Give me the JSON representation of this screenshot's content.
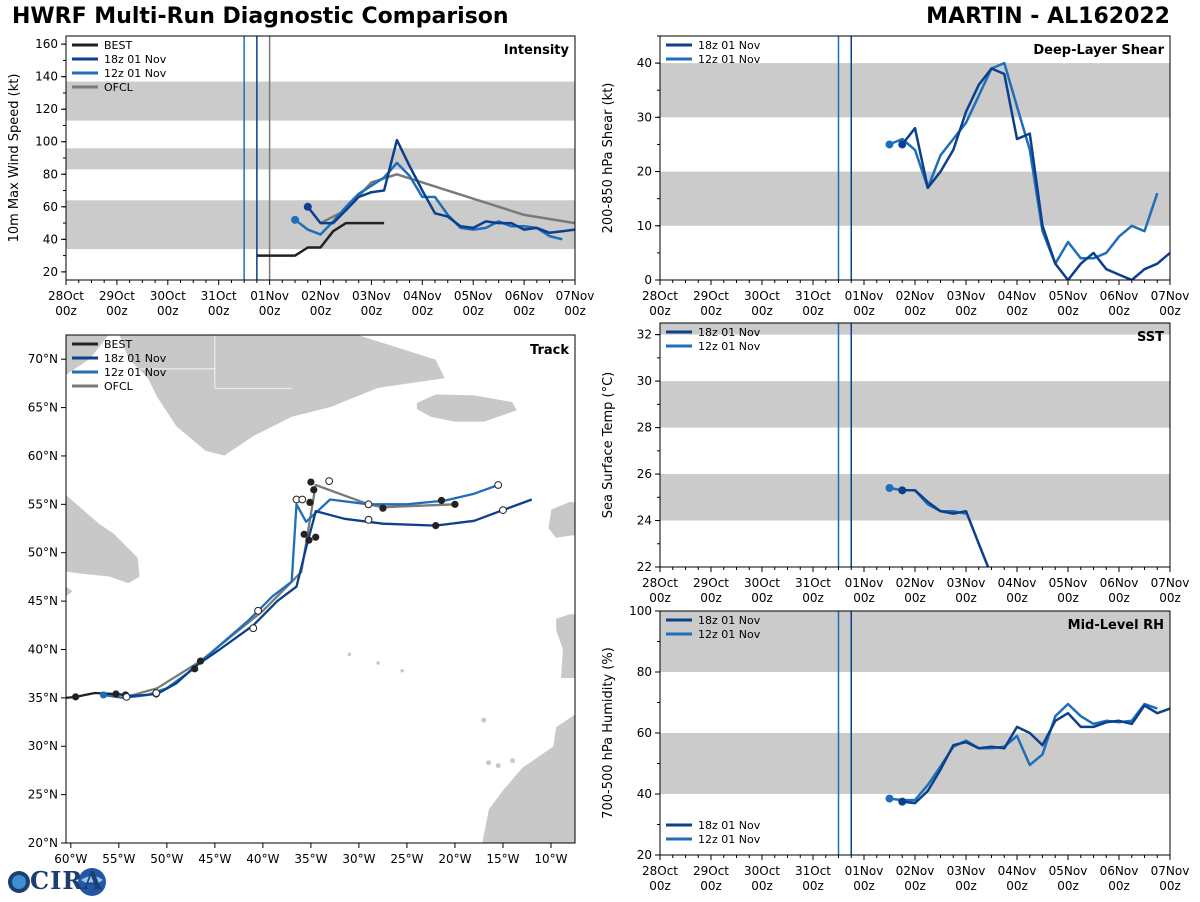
{
  "header": {
    "title_left": "HWRF Multi-Run Diagnostic Comparison",
    "title_right": "MARTIN - AL162022"
  },
  "logo": {
    "text": "CIRA"
  },
  "colors": {
    "best": "#222222",
    "run18": "#0c3f8c",
    "run12": "#1f6fb8",
    "ofcl": "#7a7a7a",
    "band": "#cbcbcb",
    "land": "#c8c8c8"
  },
  "time_axis": {
    "tick_labels": [
      "28Oct\n00z",
      "29Oct\n00z",
      "30Oct\n00z",
      "31Oct\n00z",
      "01Nov\n00z",
      "02Nov\n00z",
      "03Nov\n00z",
      "04Nov\n00z",
      "05Nov\n00z",
      "06Nov\n00z",
      "07Nov\n00z"
    ],
    "init_times": {
      "run12": 3.5,
      "run18": 3.75,
      "ofcl": 4.0
    }
  },
  "chart_data": [
    {
      "id": "intensity",
      "type": "line",
      "title": "Intensity",
      "ylabel": "10m Max Wind Speed (kt)",
      "xlim": [
        0,
        10
      ],
      "ylim": [
        15,
        165
      ],
      "yticks": [
        20,
        40,
        60,
        80,
        100,
        120,
        140,
        160
      ],
      "bands": [
        [
          34,
          64
        ],
        [
          83,
          96
        ],
        [
          113,
          137
        ]
      ],
      "vlines": [
        "run12",
        "run18",
        "ofcl"
      ],
      "legend": [
        "BEST",
        "18z 01 Nov",
        "12z 01 Nov",
        "OFCL"
      ],
      "series": [
        {
          "name": "BEST",
          "color_key": "best",
          "x": [
            2.75,
            3.5,
            3.75,
            4.0,
            4.25,
            4.5,
            4.75,
            5.0,
            5.25
          ],
          "y": [
            30,
            30,
            35,
            35,
            45,
            50,
            50,
            50,
            50
          ],
          "x_offset": 1.0
        },
        {
          "name": "18z 01 Nov",
          "color_key": "run18",
          "x": [
            4.75,
            5.0,
            5.25,
            5.5,
            5.75,
            6.0,
            6.25,
            6.5,
            6.75,
            7.0,
            7.25,
            7.5,
            7.75,
            8.0,
            8.25,
            8.5,
            8.75,
            9.0,
            9.25,
            9.5,
            9.75,
            10.0
          ],
          "y": [
            60,
            50,
            50,
            58,
            66,
            69,
            70,
            101,
            85,
            70,
            56,
            54,
            48,
            47,
            51,
            50,
            50,
            46,
            47,
            44,
            45,
            46
          ],
          "marker": 0
        },
        {
          "name": "12z 01 Nov",
          "color_key": "run12",
          "x": [
            4.5,
            4.75,
            5.0,
            5.25,
            5.5,
            5.75,
            6.0,
            6.25,
            6.5,
            6.75,
            7.0,
            7.25,
            7.5,
            7.75,
            8.0,
            8.25,
            8.5,
            8.75,
            9.0,
            9.25,
            9.5,
            9.75
          ],
          "y": [
            52,
            46,
            43,
            51,
            60,
            68,
            73,
            78,
            87,
            79,
            66,
            66,
            55,
            47,
            46,
            47,
            51,
            48,
            48,
            47,
            42,
            40
          ],
          "marker": 0
        },
        {
          "name": "OFCL",
          "color_key": "ofcl",
          "x": [
            5.0,
            5.5,
            6.0,
            6.5,
            7.0,
            8.0,
            9.0,
            10.0
          ],
          "y": [
            50,
            58,
            75,
            80,
            75,
            65,
            55,
            50
          ]
        }
      ]
    },
    {
      "id": "shear",
      "type": "line",
      "title": "Deep-Layer Shear",
      "ylabel": "200-850 hPa Shear (kt)",
      "xlim": [
        0,
        10
      ],
      "ylim": [
        0,
        45
      ],
      "yticks": [
        0,
        10,
        20,
        30,
        40
      ],
      "bands": [
        [
          10,
          20
        ],
        [
          30,
          40
        ]
      ],
      "vlines": [
        "run12",
        "run18"
      ],
      "legend": [
        "18z 01 Nov",
        "12z 01 Nov"
      ],
      "series": [
        {
          "name": "18z 01 Nov",
          "color_key": "run18",
          "x": [
            4.75,
            5.0,
            5.25,
            5.5,
            5.75,
            6.0,
            6.25,
            6.5,
            6.75,
            7.0,
            7.25,
            7.5,
            7.75,
            8.0,
            8.25,
            8.5,
            8.75,
            9.0,
            9.25,
            9.5,
            9.75,
            10.0
          ],
          "y": [
            25,
            28,
            17,
            20,
            24,
            31,
            36,
            39,
            38,
            26,
            27,
            10,
            3,
            0,
            3,
            5,
            2,
            1,
            0,
            2,
            3,
            5
          ],
          "marker": 0
        },
        {
          "name": "12z 01 Nov",
          "color_key": "run12",
          "x": [
            4.5,
            4.75,
            5.0,
            5.25,
            5.5,
            5.75,
            6.0,
            6.25,
            6.5,
            6.75,
            7.0,
            7.25,
            7.5,
            7.75,
            8.0,
            8.25,
            8.5,
            8.75,
            9.0,
            9.25,
            9.5,
            9.75
          ],
          "y": [
            25,
            26,
            24,
            17,
            23,
            26,
            29,
            34,
            39,
            40,
            32,
            24,
            9,
            3,
            7,
            4,
            4,
            5,
            8,
            10,
            9,
            16
          ],
          "marker": 0
        }
      ]
    },
    {
      "id": "sst",
      "type": "line",
      "title": "SST",
      "ylabel": "Sea Surface Temp (°C)",
      "xlim": [
        0,
        10
      ],
      "ylim": [
        22,
        32.5
      ],
      "yticks": [
        22,
        24,
        26,
        28,
        30,
        32
      ],
      "bands": [
        [
          24,
          26
        ],
        [
          28,
          30
        ],
        [
          32,
          33
        ]
      ],
      "vlines": [
        "run12",
        "run18"
      ],
      "legend": [
        "18z 01 Nov",
        "12z 01 Nov"
      ],
      "series": [
        {
          "name": "18z 01 Nov",
          "color_key": "run18",
          "x": [
            4.75,
            5.0,
            5.25,
            5.5,
            5.75,
            6.0,
            6.25,
            6.45
          ],
          "y": [
            25.3,
            25.3,
            24.8,
            24.4,
            24.3,
            24.4,
            23.0,
            21.9
          ],
          "marker": 0
        },
        {
          "name": "12z 01 Nov",
          "color_key": "run12",
          "x": [
            4.5,
            4.75,
            5.0,
            5.25,
            5.5,
            5.75,
            6.0
          ],
          "y": [
            25.4,
            25.3,
            25.3,
            24.7,
            24.4,
            24.4,
            24.3
          ],
          "marker": 0
        }
      ]
    },
    {
      "id": "rh",
      "type": "line",
      "title": "Mid-Level RH",
      "ylabel": "700-500 hPa Humidity (%)",
      "xlim": [
        0,
        10
      ],
      "ylim": [
        20,
        100
      ],
      "yticks": [
        20,
        40,
        60,
        80,
        100
      ],
      "bands": [
        [
          40,
          60
        ],
        [
          80,
          100
        ]
      ],
      "vlines": [
        "run12",
        "run18"
      ],
      "legend": [
        "18z 01 Nov",
        "12z 01 Nov"
      ],
      "series": [
        {
          "name": "18z 01 Nov",
          "color_key": "run18",
          "x": [
            4.75,
            5.0,
            5.25,
            5.5,
            5.75,
            6.0,
            6.25,
            6.5,
            6.75,
            7.0,
            7.25,
            7.5,
            7.75,
            8.0,
            8.25,
            8.5,
            8.75,
            9.0,
            9.25,
            9.5,
            9.75,
            10.0
          ],
          "y": [
            37.5,
            37,
            41,
            48,
            56,
            57,
            55,
            55.5,
            55,
            62,
            60,
            56,
            64,
            66.5,
            62,
            62,
            63.5,
            64,
            63,
            69,
            66.5,
            68
          ],
          "marker": 0
        },
        {
          "name": "12z 01 Nov",
          "color_key": "run12",
          "x": [
            4.5,
            4.75,
            5.0,
            5.25,
            5.5,
            5.75,
            6.0,
            6.25,
            6.5,
            6.75,
            7.0,
            7.25,
            7.5,
            7.75,
            8.0,
            8.25,
            8.5,
            8.75,
            9.0,
            9.25,
            9.5,
            9.75
          ],
          "y": [
            38.5,
            38,
            38,
            43,
            49,
            55.5,
            57.5,
            55,
            55,
            55.5,
            59,
            49.5,
            53,
            65.5,
            69.5,
            65.5,
            63,
            64,
            63.5,
            64,
            69.5,
            68
          ],
          "marker": 0
        }
      ]
    },
    {
      "id": "track",
      "type": "scatter",
      "title": "Track",
      "xlim": [
        -60.5,
        -7.5
      ],
      "ylim": [
        20,
        72.5
      ],
      "xticks": [
        -60,
        -55,
        -50,
        -45,
        -40,
        -35,
        -30,
        -25,
        -20,
        -15,
        -10
      ],
      "xtick_labels": [
        "60°W",
        "55°W",
        "50°W",
        "45°W",
        "40°W",
        "35°W",
        "30°W",
        "25°W",
        "20°W",
        "15°W",
        "10°W"
      ],
      "yticks": [
        20,
        25,
        30,
        35,
        40,
        45,
        50,
        55,
        60,
        65,
        70
      ],
      "ytick_labels": [
        "20°N",
        "25°N",
        "30°N",
        "35°N",
        "40°N",
        "45°N",
        "50°N",
        "55°N",
        "60°N",
        "65°N",
        "70°N"
      ],
      "legend": [
        "BEST",
        "18z 01 Nov",
        "12z 01 Nov",
        "OFCL"
      ],
      "series": [
        {
          "name": "BEST",
          "color_key": "best",
          "lon": [
            -60.5,
            -59.5,
            -57.5,
            -55.5,
            -54.2
          ],
          "lat": [
            35.0,
            35.1,
            35.5,
            35.4,
            35.3
          ],
          "dots": [
            [
              -59.5,
              35.1
            ],
            [
              -55.3,
              35.4
            ]
          ]
        },
        {
          "name": "18z 01 Nov",
          "color_key": "run18",
          "lon": [
            -55.3,
            -53.5,
            -51.0,
            -49.0,
            -47.0,
            -44.5,
            -41.0,
            -38.5,
            -36.5,
            -35.5,
            -34.7,
            -34.5,
            -31.5,
            -27.5,
            -22.0,
            -18.0,
            -15.0,
            -12.0
          ],
          "lat": [
            35.4,
            35.2,
            35.4,
            36.5,
            38.3,
            40.0,
            42.5,
            45.0,
            46.5,
            50.5,
            53.5,
            54.3,
            53.5,
            53.0,
            52.8,
            53.3,
            54.4,
            55.5
          ],
          "dots": [
            [
              -54.3,
              35.3
            ],
            [
              -51.1,
              35.4
            ],
            [
              -47.1,
              38.0
            ],
            [
              -46.5,
              38.8
            ],
            [
              -41.0,
              42.2
            ],
            [
              -35.7,
              51.9
            ],
            [
              -35.2,
              51.3
            ],
            [
              -34.5,
              51.6
            ],
            [
              -35.1,
              55.2
            ],
            [
              -34.7,
              56.5
            ],
            [
              -35.0,
              57.3
            ],
            [
              -27.5,
              54.6
            ],
            [
              -20.0,
              55.0
            ],
            [
              -21.4,
              55.4
            ],
            [
              -22.0,
              52.8
            ]
          ],
          "dot_fill": "#222222",
          "hollow": [
            [
              -51.1,
              35.5
            ],
            [
              -41.0,
              42.2
            ],
            [
              -36.5,
              55.5
            ],
            [
              -35.9,
              55.5
            ],
            [
              -33.1,
              57.4
            ],
            [
              -29.0,
              53.4
            ],
            [
              -15.0,
              54.4
            ]
          ]
        },
        {
          "name": "12z 01 Nov",
          "color_key": "run12",
          "lon": [
            -56.6,
            -54.5,
            -52.0,
            -50.0,
            -47.5,
            -45.0,
            -41.5,
            -39.0,
            -37.0,
            -36.5,
            -35.5,
            -33.0,
            -29.0,
            -25.0,
            -21.0,
            -18.0,
            -15.5
          ],
          "lat": [
            35.3,
            35.0,
            35.3,
            36.0,
            37.8,
            40.0,
            43.0,
            45.5,
            47.0,
            55.0,
            53.2,
            55.5,
            55.0,
            55.0,
            55.4,
            56.1,
            57.0
          ],
          "dots": [
            [
              -56.6,
              35.3
            ]
          ],
          "hollow": [
            [
              -54.2,
              35.1
            ],
            [
              -40.5,
              44.0
            ],
            [
              -29.0,
              55.0
            ],
            [
              -15.5,
              57.0
            ]
          ]
        },
        {
          "name": "OFCL",
          "color_key": "ofcl",
          "lon": [
            -54.2,
            -51.0,
            -46.5,
            -40.0,
            -36.0,
            -34.5,
            -29.0,
            -27.5,
            -20.0
          ],
          "lat": [
            35.1,
            36.0,
            38.8,
            44.0,
            48.0,
            57.0,
            55.0,
            54.7,
            55.0
          ]
        }
      ]
    }
  ]
}
